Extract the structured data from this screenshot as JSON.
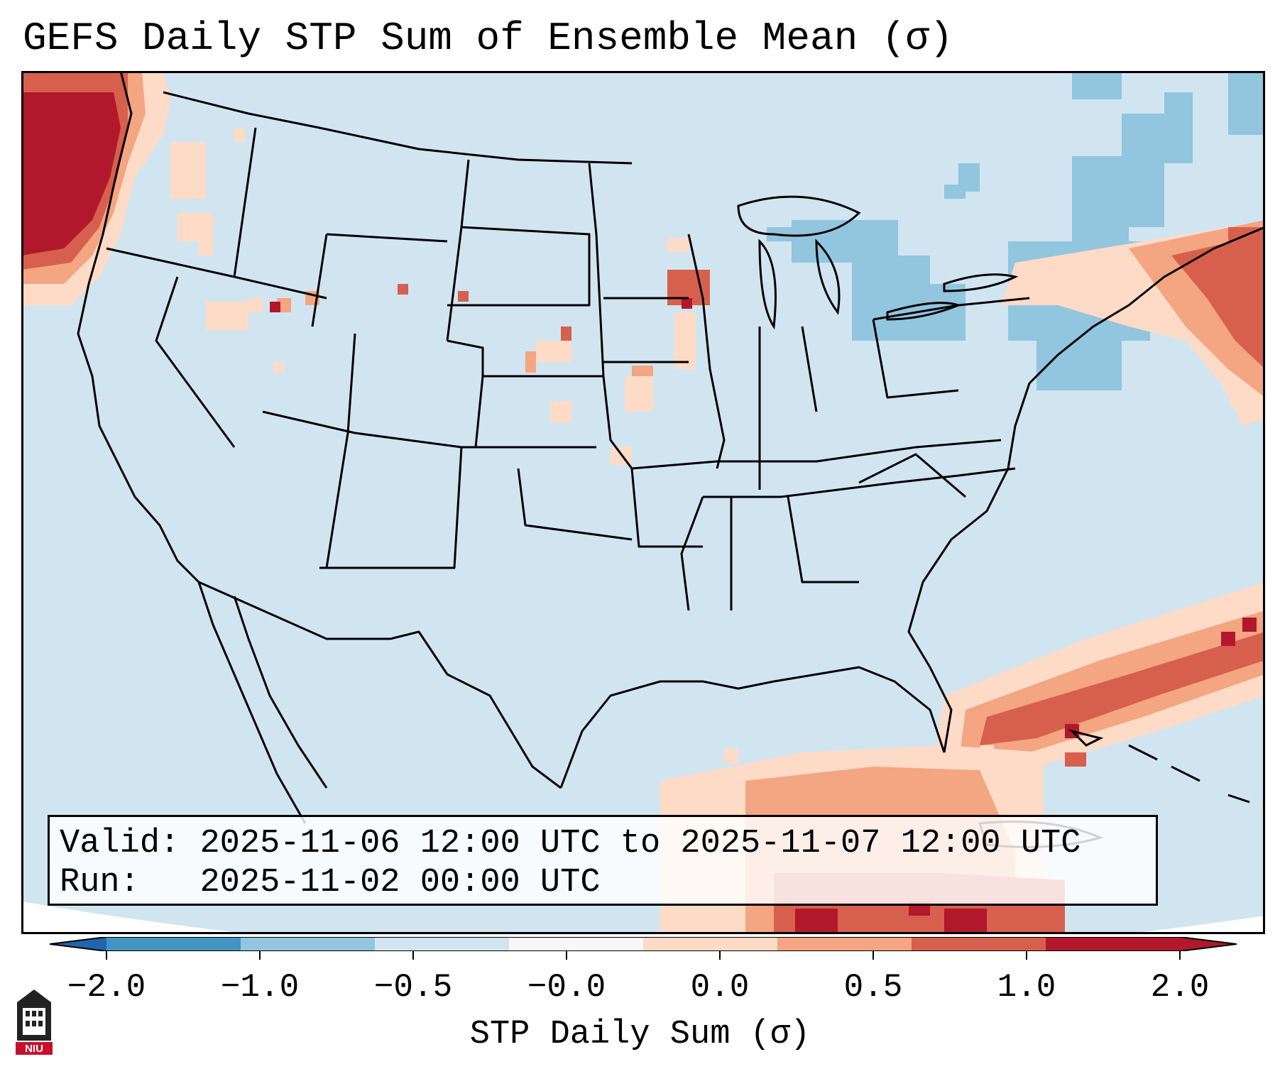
{
  "title": "GEFS Daily STP Sum of Ensemble Mean (σ)",
  "info": {
    "valid_label": "Valid:",
    "valid_value": "2025-11-06 12:00 UTC to 2025-11-07 12:00 UTC",
    "run_label": "Run:",
    "run_value": "2025-11-02 00:00 UTC"
  },
  "colorbar": {
    "label": "STP Daily Sum (σ)",
    "ticks": [
      "−2.0",
      "−1.0",
      "−0.5",
      "−0.0",
      "0.0",
      "0.5",
      "1.0",
      "2.0"
    ],
    "colors": [
      "#4393c3",
      "#92c5de",
      "#d1e5f0",
      "#f7f7f7",
      "#fddbc7",
      "#f4a582",
      "#d6604d",
      "#b2182b"
    ],
    "extend_low_color": "#2166ac",
    "extend_high_color": "#b2182b"
  },
  "map": {
    "background_color": "#d1e5f0",
    "region": "Contiguous United States",
    "features": [
      "state-boundaries",
      "coastlines",
      "great-lakes",
      "country-borders"
    ]
  },
  "logo": {
    "text": "NIU"
  }
}
